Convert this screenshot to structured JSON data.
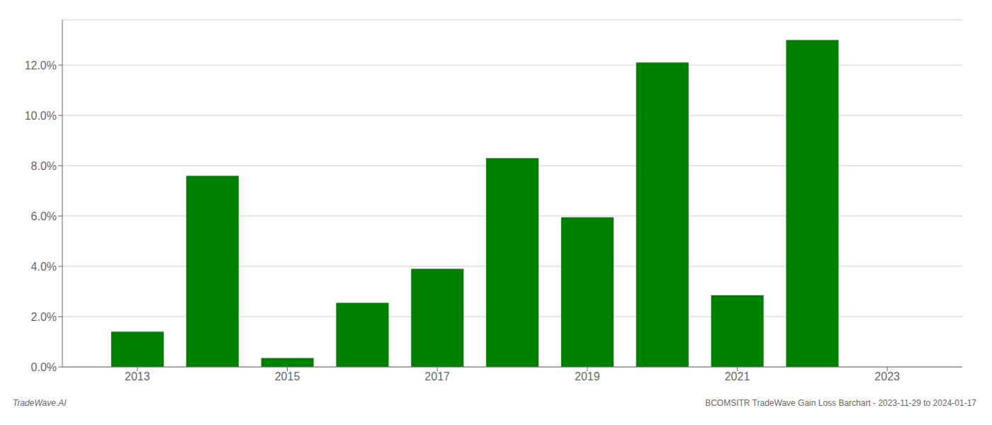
{
  "chart_data": {
    "type": "bar",
    "x": [
      2013,
      2014,
      2015,
      2016,
      2017,
      2018,
      2019,
      2020,
      2021,
      2022,
      2023
    ],
    "values": [
      0.014,
      0.076,
      0.0035,
      0.0255,
      0.039,
      0.083,
      0.0595,
      0.121,
      0.0285,
      0.13,
      0.0
    ],
    "color": "#008000",
    "xlim": [
      2012.0,
      2024.0
    ],
    "xticks": [
      2013,
      2015,
      2017,
      2019,
      2021,
      2023
    ],
    "ylim": [
      0,
      0.138
    ],
    "yticks": [
      {
        "value": 0.0,
        "label": "0.0%"
      },
      {
        "value": 0.02,
        "label": "2.0%"
      },
      {
        "value": 0.04,
        "label": "4.0%"
      },
      {
        "value": 0.06,
        "label": "6.0%"
      },
      {
        "value": 0.08,
        "label": "8.0%"
      },
      {
        "value": 0.1,
        "label": "10.0%"
      },
      {
        "value": 0.12,
        "label": "12.0%"
      }
    ],
    "grid": true,
    "annotations": [
      "TradeWave.AI",
      "BCOMSITR TradeWave Gain Loss Barchart - 2023-11-29 to 2024-01-17"
    ]
  }
}
